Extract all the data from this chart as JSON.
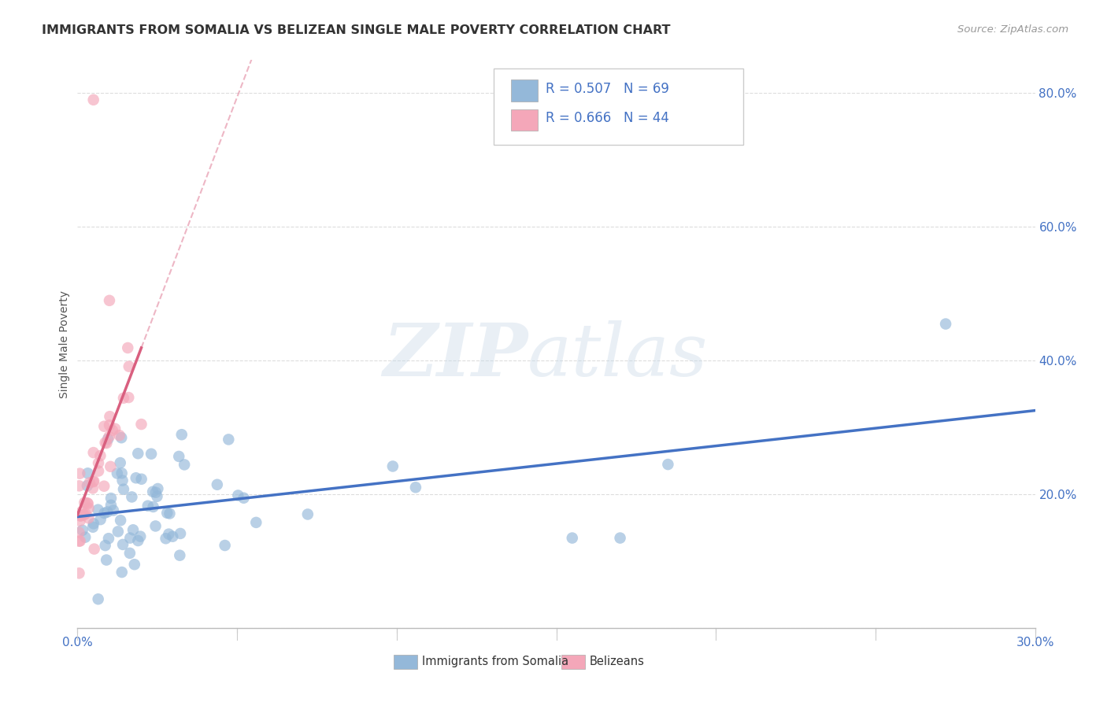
{
  "title": "IMMIGRANTS FROM SOMALIA VS BELIZEAN SINGLE MALE POVERTY CORRELATION CHART",
  "source": "Source: ZipAtlas.com",
  "ylabel": "Single Male Poverty",
  "xlim": [
    0.0,
    0.3
  ],
  "ylim": [
    0.0,
    0.85
  ],
  "somalia_color": "#94B8D9",
  "somalia_color_line": "#4472C4",
  "belize_color": "#F4A7B9",
  "belize_color_line": "#D95F7F",
  "somalia_R": 0.507,
  "somalia_N": 69,
  "belize_R": 0.666,
  "belize_N": 44,
  "legend_label_somalia": "Immigrants from Somalia",
  "legend_label_belize": "Belizeans",
  "watermark_zip": "ZIP",
  "watermark_atlas": "atlas",
  "background_color": "#FFFFFF",
  "grid_color": "#DDDDDD",
  "text_blue": "#4472C4",
  "title_color": "#333333"
}
